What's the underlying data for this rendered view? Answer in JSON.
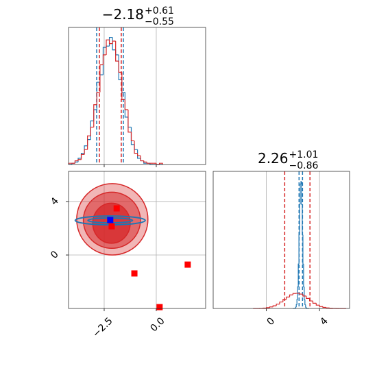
{
  "chart_data": [
    {
      "type": "histogram",
      "title": {
        "median": "−2.18",
        "plus": "+0.61",
        "minus": "−0.55"
      },
      "xlim": [
        -4.21,
        2.37
      ],
      "ylim": [
        0,
        110
      ],
      "xticks": [
        -2.5,
        0
      ],
      "grid": true,
      "series": [
        {
          "color": "#1f77b4",
          "bins": [
            -4.2,
            -4.05,
            -3.9,
            -3.75,
            -3.6,
            -3.45,
            -3.3,
            -3.15,
            -3.0,
            -2.85,
            -2.7,
            -2.55,
            -2.4,
            -2.25,
            -2.1,
            -1.95,
            -1.8,
            -1.65,
            -1.5,
            -1.35,
            -1.2,
            -1.05,
            -0.9,
            -0.75,
            -0.6,
            -0.45,
            -0.3,
            -0.15,
            0.0,
            0.15,
            0.3
          ],
          "values": [
            0,
            1,
            2,
            5,
            9,
            15,
            20,
            35,
            44,
            66,
            72,
            94,
            95,
            102,
            92,
            88,
            68,
            58,
            38,
            30,
            16,
            12,
            5,
            3,
            1,
            1,
            0,
            0,
            0,
            0
          ],
          "quantiles": [
            -2.86,
            -1.58
          ]
        },
        {
          "color": "#d62728",
          "bins": [
            -4.2,
            -4.05,
            -3.9,
            -3.75,
            -3.6,
            -3.45,
            -3.3,
            -3.15,
            -3.0,
            -2.85,
            -2.7,
            -2.55,
            -2.4,
            -2.25,
            -2.1,
            -1.95,
            -1.8,
            -1.65,
            -1.5,
            -1.35,
            -1.2,
            -1.05,
            -0.9,
            -0.75,
            -0.6,
            -0.45,
            -0.3,
            -0.15,
            0.0,
            0.15,
            0.3
          ],
          "values": [
            1,
            1,
            3,
            4,
            8,
            12,
            23,
            30,
            48,
            58,
            80,
            88,
            100,
            97,
            99,
            83,
            74,
            52,
            44,
            26,
            19,
            9,
            7,
            3,
            2,
            1,
            1,
            1,
            0,
            1
          ],
          "quantiles": [
            -2.73,
            -1.68
          ]
        }
      ]
    },
    {
      "type": "contour",
      "xlim": [
        -4.21,
        2.37
      ],
      "ylim": [
        -4.0,
        6.26
      ],
      "xticks": [
        {
          "value": -2.5,
          "label": "−2.5"
        },
        {
          "value": 0,
          "label": "0.0"
        }
      ],
      "yticks": [
        0,
        4
      ],
      "grid": true,
      "series": [
        {
          "color": "#d62728",
          "filled": true,
          "ellipses": [
            {
              "center": [
                -2.11,
                2.67
              ],
              "radii": [
                1.71,
                2.67
              ]
            },
            {
              "center": [
                -2.13,
                2.6
              ],
              "radii": [
                1.37,
                2.1
              ]
            },
            {
              "center": [
                -2.15,
                2.38
              ],
              "radii": [
                0.9,
                1.5
              ]
            }
          ]
        },
        {
          "color": "#1f77b4",
          "filled": false,
          "ellipses": [
            {
              "center": [
                -2.21,
                2.59
              ],
              "radii": [
                1.68,
                0.33
              ]
            },
            {
              "center": [
                -2.21,
                2.59
              ],
              "radii": [
                1.07,
                0.18
              ]
            }
          ]
        }
      ],
      "points": [
        {
          "color": "#ff0000",
          "x": [
            -1.9,
            -2.14,
            -1.05,
            1.51,
            0.16
          ],
          "y": [
            3.49,
            2.15,
            -1.38,
            -0.72,
            -3.9
          ]
        },
        {
          "color": "#0000ff",
          "x": [
            -2.21
          ],
          "y": [
            2.62
          ]
        }
      ]
    },
    {
      "type": "histogram",
      "title": {
        "median": "2.26",
        "plus": "+1.01",
        "minus": "−0.86"
      },
      "xlim": [
        -4.0,
        6.26
      ],
      "ylim": [
        0,
        108
      ],
      "xticks": [
        0,
        4
      ],
      "grid": true,
      "series": [
        {
          "color": "#1f77b4",
          "bins": [
            2.0,
            2.05,
            2.1,
            2.15,
            2.2,
            2.25,
            2.3,
            2.35,
            2.4,
            2.45,
            2.5,
            2.55,
            2.6,
            2.65,
            2.7,
            2.75,
            2.8,
            2.85,
            2.9,
            2.95,
            3.0,
            3.05,
            3.1,
            3.15,
            3.2
          ],
          "values": [
            0,
            0,
            0,
            0,
            1,
            3,
            7,
            17,
            35,
            58,
            82,
            98,
            100,
            82,
            58,
            35,
            17,
            7,
            3,
            1,
            0,
            0,
            0,
            0
          ],
          "quantiles": [
            2.46,
            2.72
          ]
        },
        {
          "color": "#d62728",
          "bins": [
            -1.0,
            -0.75,
            -0.5,
            -0.25,
            0.0,
            0.25,
            0.5,
            0.75,
            1.0,
            1.25,
            1.5,
            1.75,
            2.0,
            2.25,
            2.5,
            2.75,
            3.0,
            3.25,
            3.5,
            3.75,
            4.0,
            4.25,
            4.5,
            4.75,
            5.0,
            5.25,
            5.5,
            5.75,
            6.0
          ],
          "values": [
            0,
            0,
            0.1,
            0.3,
            0.6,
            1.2,
            2.1,
            3.4,
            5.1,
            7.1,
            9.0,
            10.7,
            11.8,
            12,
            11.3,
            9.8,
            7.9,
            5.9,
            4.1,
            2.6,
            1.5,
            0.8,
            0.4,
            0.2,
            0.1,
            0,
            0,
            0
          ],
          "quantiles": [
            1.38,
            3.28
          ]
        }
      ]
    }
  ]
}
